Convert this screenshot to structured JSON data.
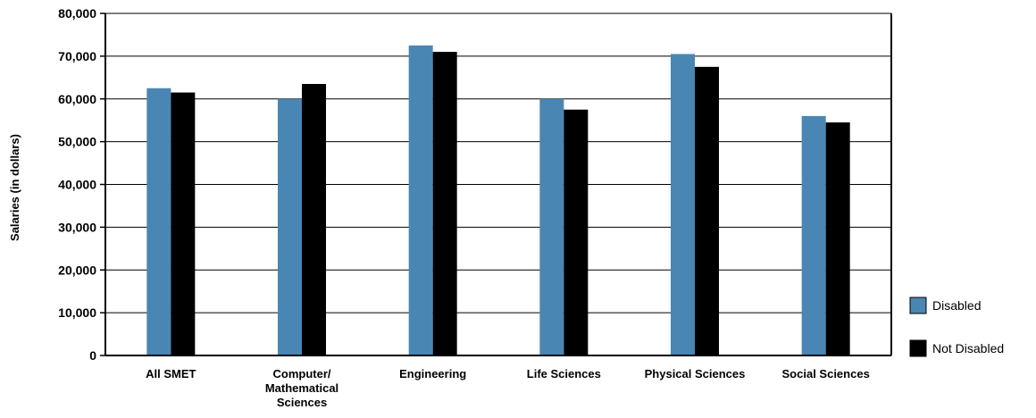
{
  "chart_data": {
    "type": "bar",
    "title": "",
    "xlabel": "",
    "ylabel": "Salaries (in dollars)",
    "ylim": [
      0,
      80000
    ],
    "yticks": [
      0,
      10000,
      20000,
      30000,
      40000,
      50000,
      60000,
      70000,
      80000
    ],
    "ytick_labels": [
      "0",
      "10,000",
      "20,000",
      "30,000",
      "40,000",
      "50,000",
      "60,000",
      "70,000",
      "80,000"
    ],
    "categories": [
      [
        "All SMET"
      ],
      [
        "Computer/",
        "Mathematical",
        "Sciences"
      ],
      [
        "Engineering"
      ],
      [
        "Life Sciences"
      ],
      [
        "Physical Sciences"
      ],
      [
        "Social Sciences"
      ]
    ],
    "series": [
      {
        "name": "Disabled",
        "color": "#4a86b4",
        "values": [
          62500,
          60000,
          72500,
          60000,
          70500,
          56000
        ]
      },
      {
        "name": "Not Disabled",
        "color": "#000000",
        "values": [
          61500,
          63500,
          71000,
          57500,
          67500,
          54500
        ]
      }
    ],
    "grid": true,
    "legend_position": "right"
  }
}
